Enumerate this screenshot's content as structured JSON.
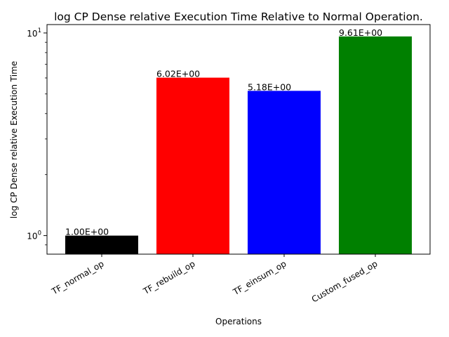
{
  "chart_data": {
    "type": "bar",
    "title": "log CP Dense relative Execution Time Relative to Normal Operation.",
    "xlabel": "Operations",
    "ylabel": "log CP Dense relative Execution Time",
    "yscale": "log",
    "ylim": [
      0.81,
      11.0
    ],
    "grid": false,
    "legend": "none",
    "categories": [
      "TF_normal_op",
      "TF_rebuild_op",
      "TF_einsum_op",
      "Custom_fused_op"
    ],
    "values": [
      1.0,
      6.02,
      5.18,
      9.61
    ],
    "data_labels": [
      "1.00E+00",
      "6.02E+00",
      "5.18E+00",
      "9.61E+00"
    ],
    "colors": [
      "#000000",
      "#ff0000",
      "#0000ff",
      "#008000"
    ],
    "y_ticks": [
      {
        "value": 1,
        "base": "10",
        "exp": "0"
      },
      {
        "value": 10,
        "base": "10",
        "exp": "1"
      }
    ]
  }
}
